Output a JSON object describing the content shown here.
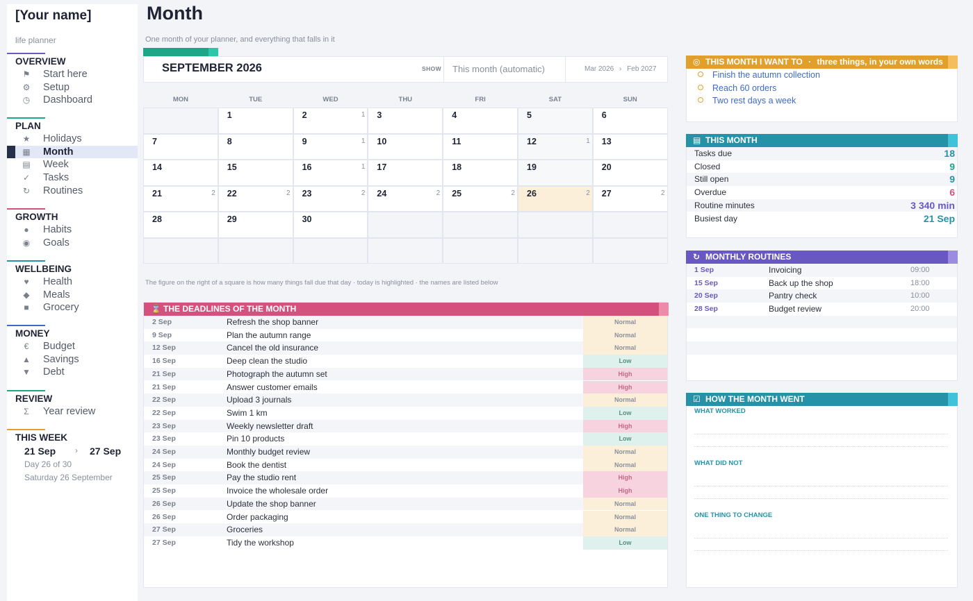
{
  "sidebar": {
    "brand": "[Your name]",
    "subtitle": "life planner",
    "sections": [
      {
        "title": "OVERVIEW",
        "underline": "#6a58c2",
        "items": [
          {
            "label": "Start here",
            "icon": "flag-icon",
            "glyph": "⚑"
          },
          {
            "label": "Setup",
            "icon": "gear-icon",
            "glyph": "⚙"
          },
          {
            "label": "Dashboard",
            "icon": "gauge-icon",
            "glyph": "◷"
          }
        ]
      },
      {
        "title": "PLAN",
        "underline": "#1fa588",
        "items": [
          {
            "label": "Holidays",
            "icon": "star-icon",
            "glyph": "★"
          },
          {
            "label": "Month",
            "icon": "calendar-grid-icon",
            "glyph": "▦",
            "active": true
          },
          {
            "label": "Week",
            "icon": "week-icon",
            "glyph": "▤"
          },
          {
            "label": "Tasks",
            "icon": "check-icon",
            "glyph": "✓"
          },
          {
            "label": "Routines",
            "icon": "refresh-icon",
            "glyph": "↻"
          }
        ]
      },
      {
        "title": "GROWTH",
        "underline": "#d6507e",
        "items": [
          {
            "label": "Habits",
            "icon": "dot-icon",
            "glyph": "●"
          },
          {
            "label": "Goals",
            "icon": "target-icon",
            "glyph": "◉"
          }
        ]
      },
      {
        "title": "WELLBEING",
        "underline": "#2592a8",
        "items": [
          {
            "label": "Health",
            "icon": "heart-icon",
            "glyph": "♥"
          },
          {
            "label": "Meals",
            "icon": "diamond-icon",
            "glyph": "◆"
          },
          {
            "label": "Grocery",
            "icon": "square-icon",
            "glyph": "■"
          }
        ]
      },
      {
        "title": "MONEY",
        "underline": "#3d6bc4",
        "items": [
          {
            "label": "Budget",
            "icon": "euro-icon",
            "glyph": "€"
          },
          {
            "label": "Savings",
            "icon": "triangle-up-icon",
            "glyph": "▲"
          },
          {
            "label": "Debt",
            "icon": "triangle-down-icon",
            "glyph": "▼"
          }
        ]
      },
      {
        "title": "REVIEW",
        "underline": "#1fa588",
        "items": [
          {
            "label": "Year review",
            "icon": "sigma-icon",
            "glyph": "Σ"
          }
        ]
      }
    ],
    "this_week": {
      "title": "THIS WEEK",
      "underline": "#e0a02b",
      "start": "21 Sep",
      "arrow": "›",
      "end": "27 Sep",
      "day_of": "Day 26 of 30",
      "today": "Saturday 26 September"
    }
  },
  "header": {
    "title": "Month",
    "subtitle": "One month of your planner, and everything that falls in it"
  },
  "month_bar": {
    "month": "SEPTEMBER 2026",
    "show_label": "SHOW",
    "show_value": "This month (automatic)",
    "range_start": "Mar 2026",
    "range_sep": "›",
    "range_end": "Feb 2027"
  },
  "calendar": {
    "weekdays": [
      "MON",
      "TUE",
      "WED",
      "THU",
      "FRI",
      "SAT",
      "SUN"
    ],
    "weeks": [
      [
        {
          "d": ""
        },
        {
          "d": "1"
        },
        {
          "d": "2",
          "c": "1"
        },
        {
          "d": "3"
        },
        {
          "d": "4"
        },
        {
          "d": "5"
        },
        {
          "d": "6"
        }
      ],
      [
        {
          "d": "7"
        },
        {
          "d": "8"
        },
        {
          "d": "9",
          "c": "1"
        },
        {
          "d": "10"
        },
        {
          "d": "11"
        },
        {
          "d": "12",
          "c": "1"
        },
        {
          "d": "13"
        }
      ],
      [
        {
          "d": "14"
        },
        {
          "d": "15"
        },
        {
          "d": "16",
          "c": "1"
        },
        {
          "d": "17"
        },
        {
          "d": "18"
        },
        {
          "d": "19"
        },
        {
          "d": "20"
        }
      ],
      [
        {
          "d": "21",
          "c": "2"
        },
        {
          "d": "22",
          "c": "2"
        },
        {
          "d": "23",
          "c": "2"
        },
        {
          "d": "24",
          "c": "2"
        },
        {
          "d": "25",
          "c": "2"
        },
        {
          "d": "26",
          "c": "2",
          "today": true
        },
        {
          "d": "27",
          "c": "2"
        }
      ],
      [
        {
          "d": "28"
        },
        {
          "d": "29"
        },
        {
          "d": "30"
        },
        {
          "d": ""
        },
        {
          "d": ""
        },
        {
          "d": ""
        },
        {
          "d": ""
        }
      ],
      [
        {
          "d": ""
        },
        {
          "d": ""
        },
        {
          "d": ""
        },
        {
          "d": ""
        },
        {
          "d": ""
        },
        {
          "d": ""
        },
        {
          "d": ""
        }
      ]
    ],
    "note": "The figure on the right of a square is how many things fall due that day · today is highlighted · the names are listed below"
  },
  "deadlines": {
    "title": "THE DEADLINES OF THE MONTH",
    "color": "#d6507e",
    "tab_color": "#ee8bab",
    "rows": [
      {
        "date": "2 Sep",
        "title": "Refresh the shop banner",
        "priority": "Normal"
      },
      {
        "date": "9 Sep",
        "title": "Plan the autumn range",
        "priority": "Normal"
      },
      {
        "date": "12 Sep",
        "title": "Cancel the old insurance",
        "priority": "Normal"
      },
      {
        "date": "16 Sep",
        "title": "Deep clean the studio",
        "priority": "Low"
      },
      {
        "date": "21 Sep",
        "title": "Photograph the autumn set",
        "priority": "High"
      },
      {
        "date": "21 Sep",
        "title": "Answer customer emails",
        "priority": "High"
      },
      {
        "date": "22 Sep",
        "title": "Upload 3 journals",
        "priority": "Normal"
      },
      {
        "date": "22 Sep",
        "title": "Swim 1 km",
        "priority": "Low"
      },
      {
        "date": "23 Sep",
        "title": "Weekly newsletter draft",
        "priority": "High"
      },
      {
        "date": "23 Sep",
        "title": "Pin 10 products",
        "priority": "Low"
      },
      {
        "date": "24 Sep",
        "title": "Monthly budget review",
        "priority": "Normal"
      },
      {
        "date": "24 Sep",
        "title": "Book the dentist",
        "priority": "Normal"
      },
      {
        "date": "25 Sep",
        "title": "Pay the studio rent",
        "priority": "High"
      },
      {
        "date": "25 Sep",
        "title": "Invoice the wholesale order",
        "priority": "High"
      },
      {
        "date": "26 Sep",
        "title": "Update the shop banner",
        "priority": "Normal"
      },
      {
        "date": "26 Sep",
        "title": "Order packaging",
        "priority": "Normal"
      },
      {
        "date": "27 Sep",
        "title": "Groceries",
        "priority": "Normal"
      },
      {
        "date": "27 Sep",
        "title": "Tidy the workshop",
        "priority": "Low"
      }
    ]
  },
  "goals": {
    "title": "THIS MONTH I WANT TO",
    "sep": "·",
    "hint": "three things, in your own words",
    "color": "#e0a02b",
    "tab_color": "#f5be5c",
    "items": [
      "Finish the autumn collection",
      "Reach 60 orders",
      "Two rest days a week"
    ]
  },
  "stats": {
    "title": "THIS MONTH",
    "color": "#2592a8",
    "tab_color": "#3fc2da",
    "rows": [
      {
        "label": "Tasks due",
        "value": "18",
        "color": "#2592a8"
      },
      {
        "label": "Closed",
        "value": "9",
        "color": "#1fa588"
      },
      {
        "label": "Still open",
        "value": "9",
        "color": "#2592a8"
      },
      {
        "label": "Overdue",
        "value": "6",
        "color": "#d6507e"
      },
      {
        "label": "Routine minutes",
        "value": "3 340 min",
        "color": "#6a58c2"
      },
      {
        "label": "Busiest day",
        "value": "21 Sep",
        "color": "#2592a8"
      }
    ]
  },
  "routines": {
    "title": "MONTHLY ROUTINES",
    "color": "#6a58c2",
    "tab_color": "#9c8ce0",
    "rows": [
      {
        "date": "1 Sep",
        "name": "Invoicing",
        "time": "09:00"
      },
      {
        "date": "15 Sep",
        "name": "Back up the shop",
        "time": "18:00"
      },
      {
        "date": "20 Sep",
        "name": "Pantry check",
        "time": "10:00"
      },
      {
        "date": "28 Sep",
        "name": "Budget review",
        "time": "20:00"
      }
    ]
  },
  "review": {
    "title": "HOW THE MONTH WENT",
    "color": "#2592a8",
    "tab_color": "#3fc2da",
    "labels": [
      "WHAT WORKED",
      "WHAT DID NOT",
      "ONE THING TO CHANGE"
    ]
  }
}
